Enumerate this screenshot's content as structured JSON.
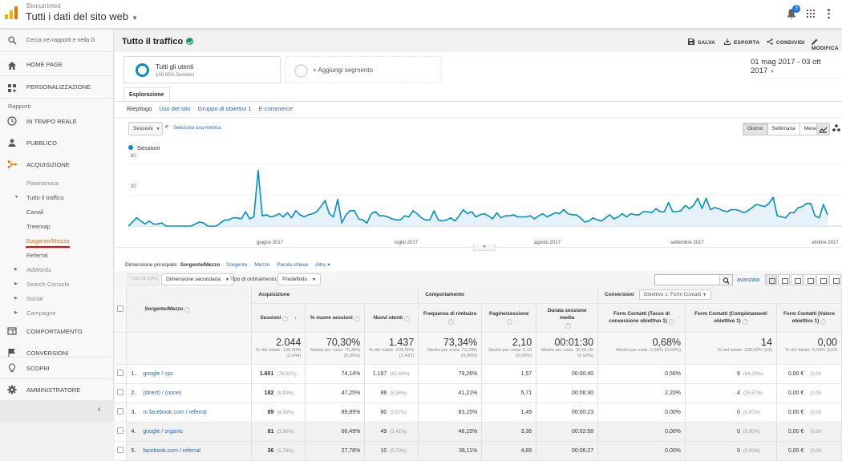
{
  "header": {
    "account": "Bionutrimed",
    "property": "Tutti i dati del sito web",
    "notifications_count": "3",
    "icons": [
      "analytics-logo",
      "bell-icon",
      "apps-grid-icon",
      "more-vert-icon"
    ]
  },
  "sidebar": {
    "search_placeholder": "Cerca nei rapporti e nella G",
    "home": "HOME PAGE",
    "customization": "PERSONALIZZAZIONE",
    "reports_label": "Rapporti",
    "realtime": "IN TEMPO REALE",
    "audience": "PUBBLICO",
    "acquisition": "ACQUISIZIONE",
    "acq_items": {
      "overview": "Panoramica",
      "all_traffic": "Tutto il traffico",
      "channels": "Canali",
      "treemap": "Treemap",
      "source_medium": "Sorgente/Mezzo",
      "referral": "Referral",
      "adwords": "AdWords",
      "search_console": "Search Console",
      "social": "Social",
      "campaigns": "Campagne"
    },
    "behavior": "COMPORTAMENTO",
    "conversions": "CONVERSIONI",
    "discover": "SCOPRI",
    "admin": "AMMINISTRATORE",
    "collapse_icon": "‹",
    "active_color": "#e8710a"
  },
  "page": {
    "title": "Tutto il traffico",
    "actions": {
      "save": "SALVA",
      "export": "ESPORTA",
      "share": "CONDIVIDI",
      "edit": "MODIFICA"
    },
    "segment": {
      "name": "Tutti gli utenti",
      "sub": "100,00% Sessioni",
      "add": "+ Aggiungi segmento"
    },
    "date_range": "01 mag 2017 - 03 ott 2017",
    "tab": "Esplorazione",
    "subtabs": [
      "Riepilogo",
      "Uso del sito",
      "Gruppo di obiettivi 1",
      "E-commerce"
    ],
    "metric_select": "Sessioni",
    "vs": "e",
    "select_metric": "Seleziona una metrica",
    "granularity": [
      "Giorno",
      "Settimana",
      "Mese"
    ],
    "granularity_selected": "Giorno"
  },
  "chart_data": {
    "type": "area",
    "title": "",
    "legend": [
      "Sessioni"
    ],
    "series_color": "#058dc7",
    "ylim": [
      0,
      60
    ],
    "yticks": [
      30,
      60
    ],
    "xticks": [
      "giugno 2017",
      "luglio 2017",
      "agosto 2017",
      "settembre 2017",
      "ottobre 2017"
    ],
    "x_range": [
      "2017-05-01",
      "2017-10-03"
    ],
    "series": [
      {
        "name": "Sessioni",
        "values": [
          0,
          4,
          8,
          5,
          2,
          5,
          2,
          2,
          3,
          0,
          0,
          0,
          0,
          0,
          0,
          0,
          2,
          4,
          3,
          0,
          0,
          0,
          3,
          6,
          6,
          8,
          8,
          7,
          14,
          7,
          9,
          54,
          10,
          11,
          9,
          10,
          12,
          9,
          13,
          8,
          15,
          11,
          9,
          11,
          12,
          14,
          19,
          25,
          12,
          9,
          26,
          3,
          11,
          15,
          15,
          7,
          6,
          3,
          12,
          14,
          10,
          10,
          9,
          7,
          6,
          6,
          10,
          9,
          15,
          12,
          8,
          6,
          6,
          15,
          6,
          5,
          6,
          8,
          5,
          10,
          16,
          12,
          14,
          9,
          11,
          12,
          10,
          7,
          13,
          8,
          10,
          10,
          11,
          9,
          9,
          9,
          10,
          7,
          10,
          12,
          9,
          11,
          13,
          12,
          16,
          12,
          11,
          11,
          8,
          4,
          5,
          8,
          6,
          5,
          8,
          11,
          7,
          9,
          12,
          9,
          12,
          11,
          11,
          14,
          14,
          13,
          17,
          14,
          14,
          23,
          14,
          14,
          15,
          20,
          17,
          20,
          27,
          17,
          27,
          16,
          18,
          17,
          15,
          14,
          16,
          16,
          15,
          13,
          15,
          18,
          21,
          20,
          19,
          22,
          28,
          10,
          9,
          8,
          13,
          13,
          18,
          19,
          22,
          22,
          10,
          8,
          21,
          11
        ]
      }
    ]
  },
  "dimensions": {
    "label": "Dimensione principale:",
    "current": "Sorgente/Mezzo",
    "options": [
      "Sorgente",
      "Mezzo",
      "Parola chiave",
      "Altro ▾"
    ]
  },
  "table_controls": {
    "plot_rows": "Traccia righe",
    "secondary_dim": "Dimensione secondaria",
    "sort_label": "Tipo di ordinamento:",
    "sort_value": "Predefinito",
    "advanced": "avanzata"
  },
  "table": {
    "groups": {
      "acquisition": "Acquisizione",
      "behavior": "Comportamento",
      "conversions": "Conversioni",
      "goal_select": "Obiettivo 1: Form Contatti"
    },
    "columns": [
      "Sorgente/Mezzo",
      "Sessioni",
      "% nuove sessioni",
      "Nuovi utenti",
      "Frequenza di rimbalzo",
      "Pagine/sessione",
      "Durata sessione media",
      "Form Contatti (Tasso di conversione obiettivo 1)",
      "Form Contatti (Completamenti obiettivo 1)",
      "Form Contatti (Valore obiettivo 1)"
    ],
    "totals": [
      {
        "big": "2.044",
        "sm": "% del totale: 100,00% (2.044)"
      },
      {
        "big": "70,30%",
        "sm": "Media per vista: 70,30% (0,00%)"
      },
      {
        "big": "1.437",
        "sm": "% del totale: 100,00% (1.437)"
      },
      {
        "big": "73,34%",
        "sm": "Media per vista: 73,34% (0,00%)"
      },
      {
        "big": "2,10",
        "sm": "Media per vista: 2,10 (0,00%)"
      },
      {
        "big": "00:01:30",
        "sm": "Media per vista: 00:01:30 (0,00%)"
      },
      {
        "big": "0,68%",
        "sm": "Media per vista: 0,68% (0,00%)"
      },
      {
        "big": "14",
        "sm": "% del totale: 100,00% (14)"
      },
      {
        "big": "0,00",
        "sm": "% del totale: 0,00% (0,00"
      }
    ],
    "rows": [
      {
        "n": "1.",
        "name": "google / cpc",
        "sessions": "1.601",
        "sessions_pct": "(78,33%)",
        "new_pct": "74,14%",
        "new_users": "1.187",
        "new_users_pct": "(82,60%)",
        "bounce": "79,26%",
        "pages": "1,57",
        "duration": "00:00:40",
        "conv_rate": "0,56%",
        "completions": "9",
        "completions_pct": "(64,29%)",
        "value": "0,00 €",
        "value_pct": "(0,00"
      },
      {
        "n": "2.",
        "name": "(direct) / (none)",
        "sessions": "182",
        "sessions_pct": "(8,90%)",
        "new_pct": "47,25%",
        "new_users": "86",
        "new_users_pct": "(5,98%)",
        "bounce": "41,21%",
        "pages": "5,71",
        "duration": "00:06:30",
        "conv_rate": "2,20%",
        "completions": "4",
        "completions_pct": "(28,57%)",
        "value": "0,00 €",
        "value_pct": "(0,00"
      },
      {
        "n": "3.",
        "name": "m.facebook.com / referral",
        "sessions": "89",
        "sessions_pct": "(4,35%)",
        "new_pct": "89,89%",
        "new_users": "80",
        "new_users_pct": "(5,57%)",
        "bounce": "83,15%",
        "pages": "1,49",
        "duration": "00:00:23",
        "conv_rate": "0,00%",
        "completions": "0",
        "completions_pct": "(0,00%)",
        "value": "0,00 €",
        "value_pct": "(0,00"
      },
      {
        "n": "4.",
        "name": "google / organic",
        "sessions": "81",
        "sessions_pct": "(3,96%)",
        "new_pct": "60,49%",
        "new_users": "49",
        "new_users_pct": "(3,41%)",
        "bounce": "48,15%",
        "pages": "3,36",
        "duration": "00:02:58",
        "conv_rate": "0,00%",
        "completions": "0",
        "completions_pct": "(0,00%)",
        "value": "0,00 €",
        "value_pct": "(0,00"
      },
      {
        "n": "5.",
        "name": "facebook.com / referral",
        "sessions": "36",
        "sessions_pct": "(1,76%)",
        "new_pct": "27,78%",
        "new_users": "10",
        "new_users_pct": "(0,70%)",
        "bounce": "36,11%",
        "pages": "4,89",
        "duration": "00:06:27",
        "conv_rate": "0,00%",
        "completions": "0",
        "completions_pct": "(0,00%)",
        "value": "0,00 €",
        "value_pct": "(0,00"
      }
    ]
  }
}
